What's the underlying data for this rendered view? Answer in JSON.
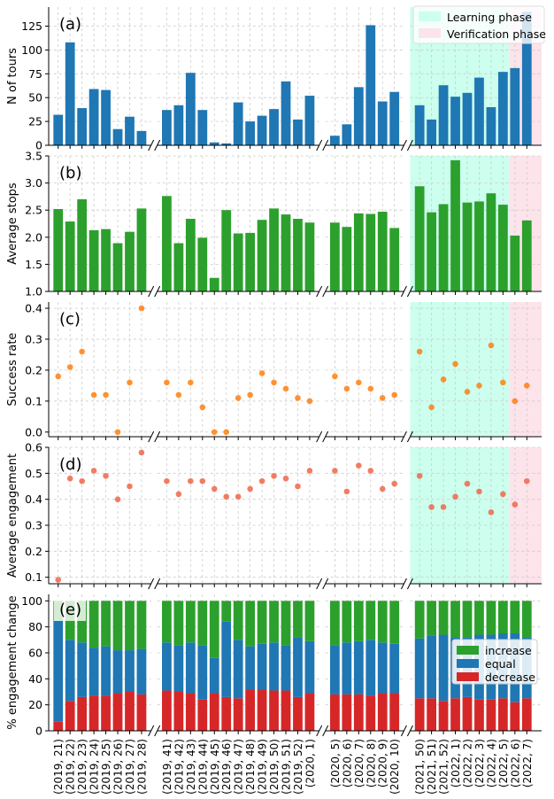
{
  "figure": {
    "categories": [
      "(2019, 21)",
      "(2019, 22)",
      "(2019, 23)",
      "(2019, 24)",
      "(2019, 25)",
      "(2019, 26)",
      "(2019, 27)",
      "(2019, 28)",
      "(2019, 41)",
      "(2019, 42)",
      "(2019, 43)",
      "(2019, 44)",
      "(2019, 45)",
      "(2019, 46)",
      "(2019, 47)",
      "(2019, 48)",
      "(2019, 49)",
      "(2019, 50)",
      "(2019, 51)",
      "(2019, 52)",
      "(2020, 1)",
      "(2020, 5)",
      "(2020, 6)",
      "(2020, 7)",
      "(2020, 8)",
      "(2020, 9)",
      "(2020, 10)",
      "(2021, 50)",
      "(2021, 51)",
      "(2021, 52)",
      "(2022, 1)",
      "(2022, 2)",
      "(2022, 3)",
      "(2022, 4)",
      "(2022, 5)",
      "(2022, 6)",
      "(2022, 7)"
    ],
    "groups": [
      8,
      13,
      6,
      10
    ],
    "phases": {
      "learning": {
        "label": "Learning phase",
        "color": "#ccffee",
        "from": "(2021, 50)",
        "to": "(2022, 5)"
      },
      "verification": {
        "label": "Verification phase",
        "color": "#fde3ea",
        "from": "(2022, 6)",
        "to": "(2022, 7)"
      }
    }
  },
  "chart_data": [
    {
      "type": "bar",
      "panel": "(a)",
      "ylabel": "N of tours",
      "ylim": [
        0,
        145
      ],
      "yticks": [
        0,
        25,
        50,
        75,
        100,
        125
      ],
      "color": "#1f77b4",
      "show_phases": true,
      "values": [
        32,
        108,
        39,
        59,
        58,
        17,
        30,
        15,
        37,
        42,
        76,
        37,
        3,
        2,
        45,
        25,
        31,
        38,
        67,
        27,
        52,
        10,
        22,
        61,
        126,
        46,
        56,
        42,
        27,
        63,
        51,
        55,
        71,
        40,
        77,
        81,
        140
      ]
    },
    {
      "type": "bar",
      "panel": "(b)",
      "ylabel": "Average stops",
      "ylim": [
        1.0,
        3.5
      ],
      "yticks": [
        1.0,
        1.5,
        2.0,
        2.5,
        3.0,
        3.5
      ],
      "color": "#2ca02c",
      "show_phases": true,
      "values": [
        2.52,
        2.29,
        2.7,
        2.13,
        2.15,
        1.89,
        2.1,
        2.53,
        2.76,
        1.89,
        2.34,
        1.99,
        1.25,
        2.5,
        2.07,
        2.08,
        2.32,
        2.53,
        2.42,
        2.34,
        2.27,
        2.27,
        2.19,
        2.44,
        2.43,
        2.47,
        2.17,
        2.94,
        2.46,
        2.61,
        3.42,
        2.64,
        2.66,
        2.81,
        2.6,
        2.03,
        2.31
      ]
    },
    {
      "type": "scatter",
      "panel": "(c)",
      "ylabel": "Success rate",
      "ylim": [
        -0.015,
        0.42
      ],
      "yticks": [
        0.0,
        0.1,
        0.2,
        0.3,
        0.4
      ],
      "color": "#ff7f0e",
      "show_phases": true,
      "values": [
        0.18,
        0.21,
        0.26,
        0.12,
        0.12,
        0.0,
        0.16,
        0.4,
        0.16,
        0.12,
        0.16,
        0.08,
        0.0,
        0.0,
        0.11,
        0.12,
        0.19,
        0.16,
        0.14,
        0.11,
        0.1,
        0.18,
        0.14,
        0.16,
        0.14,
        0.11,
        0.12,
        0.26,
        0.08,
        0.17,
        0.22,
        0.13,
        0.15,
        0.28,
        0.16,
        0.1,
        0.15
      ]
    },
    {
      "type": "scatter",
      "panel": "(d)",
      "ylabel": "Average engagement",
      "ylim": [
        0.075,
        0.6
      ],
      "yticks": [
        0.1,
        0.2,
        0.3,
        0.4,
        0.5,
        0.6
      ],
      "color": "#f0664a",
      "show_phases": true,
      "values": [
        0.09,
        0.48,
        0.47,
        0.51,
        0.49,
        0.4,
        0.45,
        0.58,
        0.47,
        0.42,
        0.47,
        0.47,
        0.44,
        0.41,
        0.41,
        0.44,
        0.47,
        0.49,
        0.48,
        0.45,
        0.51,
        0.51,
        0.43,
        0.53,
        0.51,
        0.44,
        0.46,
        0.49,
        0.37,
        0.37,
        0.41,
        0.46,
        0.43,
        0.35,
        0.42,
        0.38,
        0.47
      ]
    },
    {
      "type": "stacked_bar",
      "panel": "(e)",
      "ylabel": "% engagement change",
      "ylim": [
        0,
        105
      ],
      "yticks": [
        0,
        20,
        40,
        60,
        80,
        100
      ],
      "show_phases": false,
      "series": [
        {
          "name": "decrease",
          "color": "#d62728",
          "values": [
            7,
            23,
            26,
            27,
            27,
            29,
            30,
            28,
            31,
            30,
            29,
            24,
            29,
            26,
            25,
            32,
            32,
            31,
            31,
            26,
            29,
            28,
            28,
            28,
            27,
            29,
            29,
            25,
            25,
            23,
            25,
            26,
            24,
            24,
            25,
            22,
            25
          ]
        },
        {
          "name": "equal",
          "color": "#1f77b4",
          "values": [
            78,
            47,
            42,
            37,
            38,
            33,
            32,
            35,
            37,
            36,
            39,
            42,
            27,
            58,
            45,
            33,
            35,
            37,
            35,
            46,
            40,
            38,
            40,
            41,
            43,
            39,
            38,
            46,
            48,
            51,
            47,
            46,
            50,
            50,
            50,
            53,
            47
          ]
        },
        {
          "name": "increase",
          "color": "#2ca02c",
          "values": [
            15,
            30,
            32,
            36,
            35,
            38,
            38,
            37,
            32,
            34,
            32,
            34,
            44,
            16,
            30,
            35,
            33,
            32,
            34,
            28,
            31,
            34,
            32,
            31,
            30,
            32,
            33,
            29,
            27,
            26,
            28,
            28,
            26,
            26,
            25,
            25,
            28
          ]
        }
      ],
      "legend": [
        "increase",
        "equal",
        "decrease"
      ]
    }
  ]
}
